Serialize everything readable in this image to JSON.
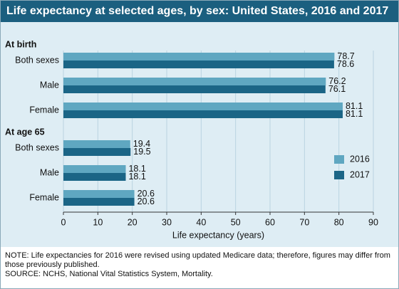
{
  "chart_data": {
    "type": "bar",
    "orientation": "horizontal",
    "title": "Life expectancy at selected ages, by sex: United States, 2016 and 2017",
    "groups": [
      {
        "name": "At birth",
        "categories": [
          "Both sexes",
          "Male",
          "Female"
        ]
      },
      {
        "name": "At age 65",
        "categories": [
          "Both sexes",
          "Male",
          "Female"
        ]
      }
    ],
    "series": [
      {
        "name": "2016",
        "color": "#5fa7c1",
        "values": [
          78.7,
          76.2,
          81.1,
          19.4,
          18.1,
          20.6
        ]
      },
      {
        "name": "2017",
        "color": "#1b6586",
        "values": [
          78.6,
          76.1,
          81.1,
          19.5,
          18.1,
          20.6
        ]
      }
    ],
    "xlim": [
      0,
      90
    ],
    "xticks": [
      0,
      10,
      20,
      30,
      40,
      50,
      60,
      70,
      80,
      90
    ],
    "xlabel": "Life expectancy (years)",
    "grid": true,
    "legend": "right",
    "note": "NOTE: Life expectancies for 2016 were revised using updated Medicare data; therefore, figures may differ from those previously published.",
    "source": "SOURCE: NCHS, National Vital Statistics System, Mortality."
  }
}
